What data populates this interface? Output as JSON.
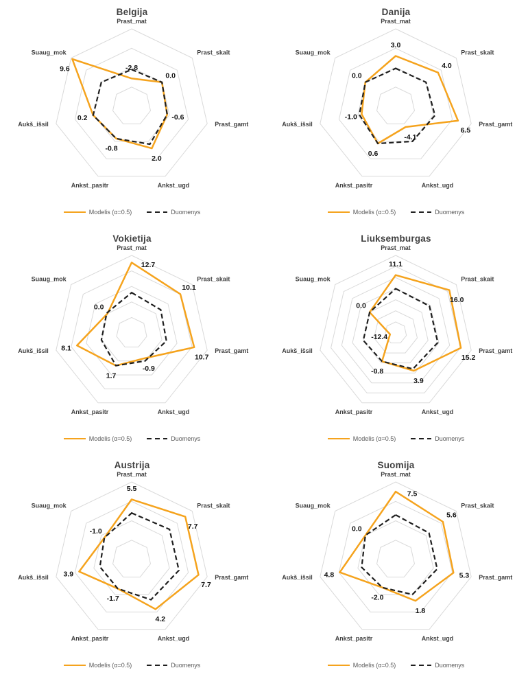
{
  "style": {
    "background": "#ffffff",
    "modelis_color": "#F5A31D",
    "duomenys_color": "#1f1f1f",
    "grid_color": "#D9D9D9",
    "title_color": "#3f3f3f",
    "axis_label_color": "#3f3f3f",
    "value_label_color": "#141414",
    "legend_text_color": "#595959"
  },
  "legend": {
    "modelis": "Modelis (α=0.5)",
    "duomenys": "Duomenys"
  },
  "categories": [
    "Prast_mat",
    "Prast_skait",
    "Prast_gamt",
    "Ankst_ugd",
    "Ankst_pasitr",
    "Aukš_išsil",
    "Suaug_mok"
  ],
  "chart_data": [
    {
      "type": "radar",
      "title": "Belgija",
      "categories": [
        "Prast_mat",
        "Prast_skait",
        "Prast_gamt",
        "Ankst_ugd",
        "Ankst_pasitr",
        "Aukš_išsil",
        "Suaug_mok"
      ],
      "scale": {
        "min": -10,
        "max": 10,
        "step": 5
      },
      "grid": true,
      "legend_position": "bottom",
      "series": [
        {
          "name": "Modelis (α=0.5)",
          "values": [
            -2.8,
            0.0,
            -0.6,
            2.0,
            -0.8,
            0.2,
            9.6
          ]
        },
        {
          "name": "Duomenys",
          "values": [
            -0.5,
            0.0,
            -0.6,
            0.8,
            -0.8,
            0.2,
            0.0
          ]
        }
      ],
      "data_labels": [
        "-2.8",
        "0.0",
        "-0.6",
        "2.0",
        "-0.8",
        "0.2",
        "9.6"
      ]
    },
    {
      "type": "radar",
      "title": "Danija",
      "categories": [
        "Prast_mat",
        "Prast_skait",
        "Prast_gamt",
        "Ankst_ugd",
        "Ankst_pasitr",
        "Aukš_išsil",
        "Suaug_mok"
      ],
      "scale": {
        "min": -10,
        "max": 10,
        "step": 5
      },
      "grid": true,
      "legend_position": "bottom",
      "series": [
        {
          "name": "Modelis (α=0.5)",
          "values": [
            3.0,
            4.0,
            6.5,
            -4.1,
            0.6,
            -1.0,
            0.0
          ]
        },
        {
          "name": "Duomenys",
          "values": [
            -0.2,
            0.0,
            0.4,
            0.0,
            0.6,
            -0.4,
            0.0
          ]
        }
      ],
      "data_labels": [
        "3.0",
        "4.0",
        "6.5",
        "-4.1",
        "0.6",
        "-1.0",
        "0.0"
      ]
    },
    {
      "type": "radar",
      "title": "Vokietija",
      "categories": [
        "Prast_mat",
        "Prast_skait",
        "Prast_gamt",
        "Ankst_ugd",
        "Ankst_pasitr",
        "Aukš_išsil",
        "Suaug_mok"
      ],
      "scale": {
        "min": -10,
        "max": 15,
        "step": 5
      },
      "grid": true,
      "legend_position": "bottom",
      "series": [
        {
          "name": "Modelis (α=0.5)",
          "values": [
            12.7,
            10.1,
            10.7,
            -0.9,
            1.7,
            8.1,
            0.0
          ]
        },
        {
          "name": "Duomenys",
          "values": [
            3.0,
            2.0,
            1.5,
            0.0,
            1.7,
            0.0,
            0.3
          ]
        }
      ],
      "data_labels": [
        "12.7",
        "10.1",
        "10.7",
        "-0.9",
        "1.7",
        "8.1",
        "0.0"
      ]
    },
    {
      "type": "radar",
      "title": "Liuksemburgas",
      "categories": [
        "Prast_mat",
        "Prast_skait",
        "Prast_gamt",
        "Ankst_ugd",
        "Ankst_pasitr",
        "Aukš_išsil",
        "Suaug_mok"
      ],
      "scale": {
        "min": -15,
        "max": 20,
        "step": 5
      },
      "grid": true,
      "legend_position": "bottom",
      "series": [
        {
          "name": "Modelis (α=0.5)",
          "values": [
            11.1,
            16.0,
            15.2,
            3.9,
            -0.8,
            -12.4,
            0.0
          ]
        },
        {
          "name": "Duomenys",
          "values": [
            5.0,
            4.5,
            4.5,
            3.0,
            -0.8,
            0.0,
            0.0
          ]
        }
      ],
      "data_labels": [
        "11.1",
        "16.0",
        "15.2",
        "3.9",
        "-0.8",
        "-12.4",
        "0.0"
      ]
    },
    {
      "type": "radar",
      "title": "Austrija",
      "categories": [
        "Prast_mat",
        "Prast_skait",
        "Prast_gamt",
        "Ankst_ugd",
        "Ankst_pasitr",
        "Aukš_išsil",
        "Suaug_mok"
      ],
      "scale": {
        "min": -10,
        "max": 10,
        "step": 5
      },
      "grid": true,
      "legend_position": "bottom",
      "series": [
        {
          "name": "Modelis (α=0.5)",
          "values": [
            5.5,
            7.7,
            7.7,
            4.2,
            -1.7,
            3.9,
            -1.0
          ]
        },
        {
          "name": "Duomenys",
          "values": [
            2.0,
            2.5,
            2.5,
            1.5,
            -1.7,
            -1.6,
            -1.0
          ]
        }
      ],
      "data_labels": [
        "5.5",
        "7.7",
        "7.7",
        "4.2",
        "-1.7",
        "3.9",
        "-1.0"
      ]
    },
    {
      "type": "radar",
      "title": "Suomija",
      "categories": [
        "Prast_mat",
        "Prast_skait",
        "Prast_gamt",
        "Ankst_ugd",
        "Ankst_pasitr",
        "Aukš_išsil",
        "Suaug_mok"
      ],
      "scale": {
        "min": -10,
        "max": 10,
        "step": 5
      },
      "grid": true,
      "legend_position": "bottom",
      "series": [
        {
          "name": "Modelis (α=0.5)",
          "values": [
            7.5,
            5.6,
            5.3,
            1.8,
            -2.0,
            4.8,
            0.0
          ]
        },
        {
          "name": "Duomenys",
          "values": [
            1.5,
            1.0,
            1.0,
            0.0,
            -2.0,
            -1.0,
            0.0
          ]
        }
      ],
      "data_labels": [
        "7.5",
        "5.6",
        "5.3",
        "1.8",
        "-2.0",
        "4.8",
        "0.0"
      ]
    }
  ]
}
